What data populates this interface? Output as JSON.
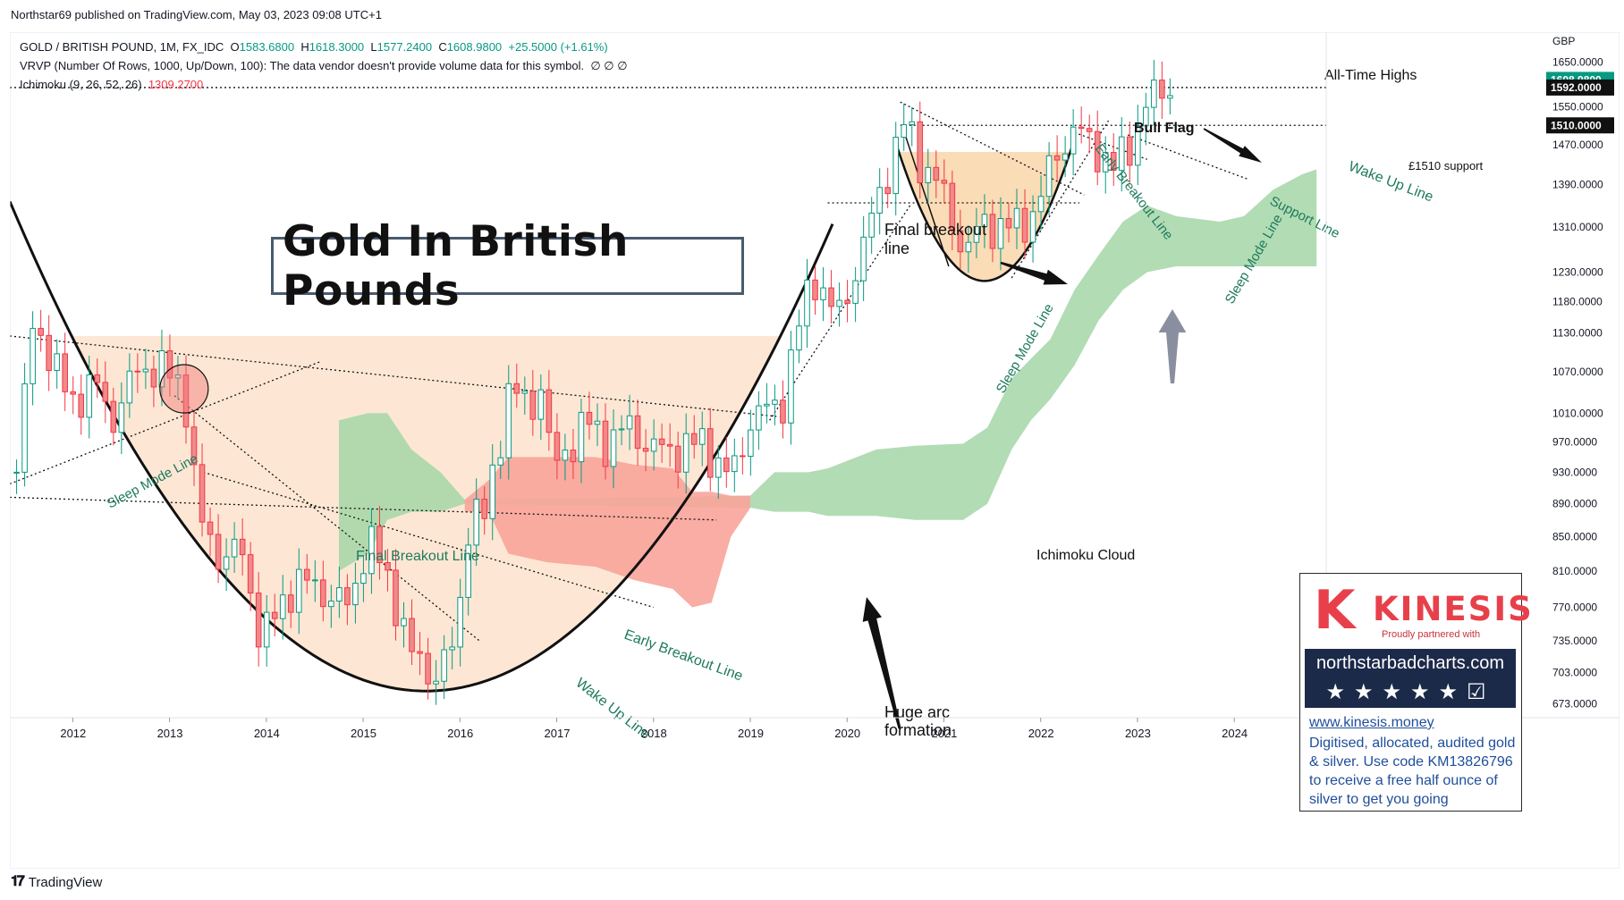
{
  "publisher_line": "Northstar69 published on TradingView.com, May 03, 2023 09:08 UTC+1",
  "footer_brand": "TradingView",
  "legend": {
    "symbol": "GOLD / BRITISH POUND, 1M, FX_IDC",
    "open_label": "O",
    "open": "1583.6800",
    "high_label": "H",
    "high": "1618.3000",
    "low_label": "L",
    "low": "1577.2400",
    "close_label": "C",
    "close": "1608.9800",
    "change": "+25.5000 (+1.61%)",
    "vrvp": "VRVP (Number Of Rows, 1000, Up/Down, 100): The data vendor doesn't provide volume data for this symbol.",
    "vrvp_values": "∅  ∅  ∅",
    "ichimoku": "Ichimoku (9, 26, 52, 26)",
    "ichimoku_value": "1309.2700"
  },
  "title_box": "Gold In British Pounds",
  "promo": {
    "brand_letter": "K",
    "brand_name": "KINESIS",
    "brand_sub": "Proudly partnered with",
    "site": "northstarbadcharts.com",
    "stars": "★★★★★☑",
    "link": "www.kinesis.money",
    "description": "Digitised, allocated, audited gold & silver. Use code KM13826796 to receive a free half ounce of silver to get you going"
  },
  "colors": {
    "up": "#089981",
    "down": "#f23645",
    "up_fill": "#ffffff",
    "down_fill": "#f08a8a",
    "cloud_green": "#a5d6a7",
    "cloud_red": "#f8a49a",
    "arc_fill": "#fde3cd",
    "flag_fill": "#f9d3a5",
    "annotation": "#1e7a5e"
  },
  "chart_data": {
    "type": "candlestick",
    "currency": "GBP",
    "y_scale": "log",
    "y_range": [
      660,
      1720
    ],
    "x_range": [
      2011.35,
      2024.95
    ],
    "price_ticks": [
      1650,
      1550,
      1470,
      1390,
      1310,
      1230,
      1180,
      1130,
      1070,
      1010,
      970,
      930,
      890,
      850,
      810,
      770,
      735,
      703,
      673
    ],
    "price_tick_labels": [
      "1650.0000",
      "1550.0000",
      "1470.0000",
      "1390.0000",
      "1310.0000",
      "1230.0000",
      "1180.0000",
      "1130.0000",
      "1070.0000",
      "1010.0000",
      "970.0000",
      "930.0000",
      "890.0000",
      "850.0000",
      "810.0000",
      "770.0000",
      "735.0000",
      "703.0000",
      "673.0000"
    ],
    "year_ticks": [
      2012,
      2013,
      2014,
      2015,
      2016,
      2017,
      2018,
      2019,
      2020,
      2021,
      2022,
      2023,
      2024
    ],
    "badges": [
      {
        "value": 1608.98,
        "label": "1608.9800",
        "color": "#089981"
      },
      {
        "value": 1592.0,
        "label": "1592.0000",
        "color": "#111111"
      },
      {
        "value": 1510.0,
        "label": "1510.0000",
        "color": "#111111"
      }
    ],
    "anchors": [
      [
        2011.42,
        930
      ],
      [
        2011.6,
        1160
      ],
      [
        2011.85,
        1060
      ],
      [
        2012.0,
        1030
      ],
      [
        2012.25,
        1050
      ],
      [
        2012.4,
        1000
      ],
      [
        2012.7,
        1080
      ],
      [
        2012.95,
        1070
      ],
      [
        2013.15,
        1050
      ],
      [
        2013.3,
        870
      ],
      [
        2013.5,
        830
      ],
      [
        2013.75,
        830
      ],
      [
        2013.95,
        735
      ],
      [
        2014.3,
        800
      ],
      [
        2014.55,
        790
      ],
      [
        2014.85,
        770
      ],
      [
        2015.05,
        850
      ],
      [
        2015.3,
        790
      ],
      [
        2015.5,
        720
      ],
      [
        2015.75,
        700
      ],
      [
        2015.95,
        730
      ],
      [
        2016.1,
        880
      ],
      [
        2016.25,
        870
      ],
      [
        2016.5,
        1040
      ],
      [
        2016.75,
        1020
      ],
      [
        2016.85,
        1060
      ],
      [
        2016.95,
        930
      ],
      [
        2017.3,
        1000
      ],
      [
        2017.5,
        970
      ],
      [
        2017.75,
        990
      ],
      [
        2018.0,
        960
      ],
      [
        2018.25,
        960
      ],
      [
        2018.5,
        970
      ],
      [
        2018.8,
        920
      ],
      [
        2019.0,
        1000
      ],
      [
        2019.35,
        1030
      ],
      [
        2019.45,
        1110
      ],
      [
        2019.65,
        1230
      ],
      [
        2019.9,
        1150
      ],
      [
        2020.1,
        1240
      ],
      [
        2020.35,
        1380
      ],
      [
        2020.6,
        1520
      ],
      [
        2020.75,
        1440
      ],
      [
        2020.95,
        1390
      ],
      [
        2021.15,
        1290
      ],
      [
        2021.25,
        1270
      ],
      [
        2021.4,
        1320
      ],
      [
        2021.55,
        1310
      ],
      [
        2021.75,
        1310
      ],
      [
        2021.95,
        1340
      ],
      [
        2022.15,
        1450
      ],
      [
        2022.35,
        1500
      ],
      [
        2022.55,
        1470
      ],
      [
        2022.75,
        1420
      ],
      [
        2022.95,
        1480
      ],
      [
        2023.1,
        1560
      ],
      [
        2023.3,
        1590
      ],
      [
        2023.36,
        1609
      ]
    ],
    "cloud_green": [
      [
        2014.75,
        810,
        1000
      ],
      [
        2015.05,
        830,
        1010
      ],
      [
        2015.25,
        870,
        1010
      ],
      [
        2015.5,
        880,
        960
      ],
      [
        2015.8,
        880,
        930
      ],
      [
        2016.05,
        890,
        895
      ],
      [
        2019.0,
        885,
        900
      ],
      [
        2019.25,
        880,
        930
      ],
      [
        2019.6,
        880,
        930
      ],
      [
        2019.8,
        875,
        935
      ],
      [
        2020.3,
        875,
        960
      ],
      [
        2020.7,
        870,
        965
      ],
      [
        2021.2,
        870,
        968
      ],
      [
        2021.45,
        890,
        990
      ],
      [
        2021.7,
        960,
        1060
      ],
      [
        2021.9,
        1000,
        1090
      ],
      [
        2022.1,
        1030,
        1120
      ],
      [
        2022.35,
        1080,
        1200
      ],
      [
        2022.6,
        1150,
        1260
      ],
      [
        2022.85,
        1200,
        1320
      ],
      [
        2023.1,
        1230,
        1350
      ],
      [
        2023.4,
        1240,
        1330
      ],
      [
        2023.85,
        1240,
        1320
      ],
      [
        2024.1,
        1240,
        1330
      ],
      [
        2024.4,
        1240,
        1380
      ],
      [
        2024.7,
        1240,
        1410
      ],
      [
        2024.85,
        1240,
        1420
      ]
    ],
    "cloud_red": [
      [
        2016.05,
        880,
        895
      ],
      [
        2016.3,
        880,
        920
      ],
      [
        2016.5,
        830,
        950
      ],
      [
        2016.9,
        820,
        950
      ],
      [
        2017.4,
        815,
        950
      ],
      [
        2017.8,
        800,
        940
      ],
      [
        2018.2,
        790,
        935
      ],
      [
        2018.4,
        770,
        905
      ],
      [
        2018.6,
        775,
        905
      ],
      [
        2018.8,
        850,
        900
      ],
      [
        2019.0,
        885,
        900
      ]
    ],
    "annotations": [
      "Sleep Mode Line",
      "Final Breakout Line",
      "Early Breakout Line",
      "Wake Up Line",
      "Final breakout",
      "line",
      "Huge arc",
      "formation",
      "Ichimoku Cloud",
      "Bull Flag",
      "All-Time Highs",
      "£1510 support",
      "Early Breakout Line",
      "Support Line",
      "Sleep Mode Line",
      "Sleep Mode Line",
      "Wake Up Line"
    ]
  }
}
